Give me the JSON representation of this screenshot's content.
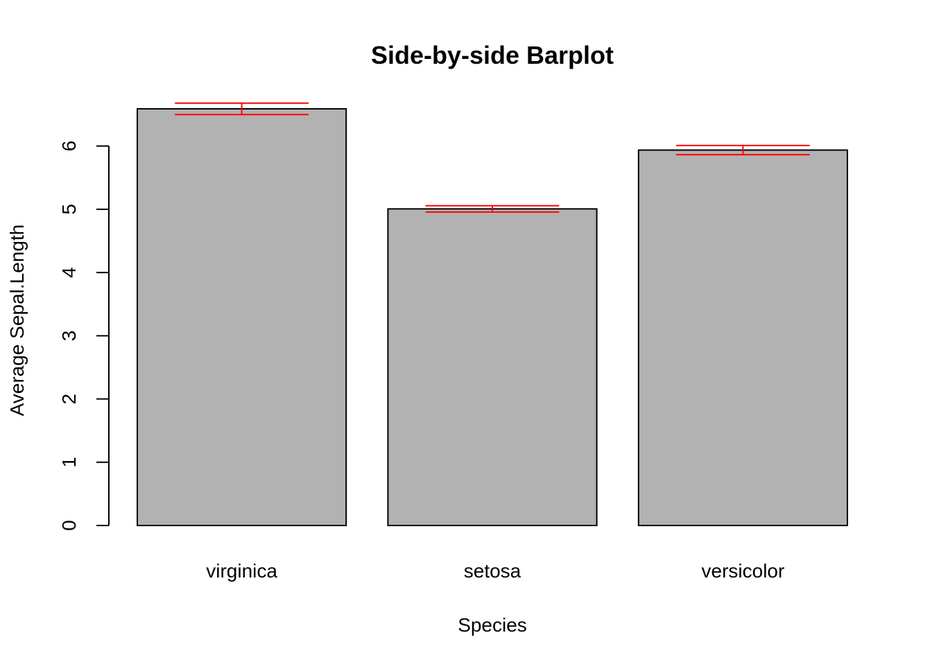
{
  "chart_data": {
    "type": "bar",
    "title": "Side-by-side Barplot",
    "xlabel": "Species",
    "ylabel": "Average Sepal.Length",
    "categories": [
      "virginica",
      "setosa",
      "versicolor"
    ],
    "values": [
      6.588,
      5.006,
      5.936
    ],
    "error_low": [
      6.498,
      4.956,
      5.863
    ],
    "error_high": [
      6.678,
      5.056,
      6.009
    ],
    "ylim": [
      0,
      6.588
    ],
    "yticks": [
      "0",
      "1",
      "2",
      "3",
      "4",
      "5",
      "6"
    ],
    "bar_color": "#b2b2b2",
    "bar_edge_color": "#000000",
    "error_color": "#ff0000",
    "grid": false,
    "legend": "none"
  }
}
